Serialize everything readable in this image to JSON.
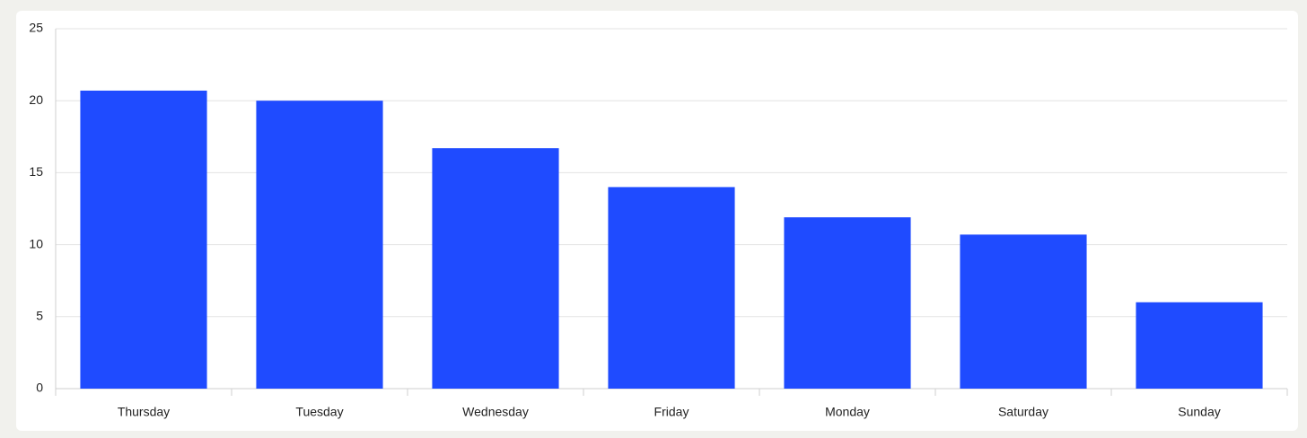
{
  "chart_data": {
    "type": "bar",
    "categories": [
      "Thursday",
      "Tuesday",
      "Wednesday",
      "Friday",
      "Monday",
      "Saturday",
      "Sunday"
    ],
    "values": [
      20.7,
      20,
      16.7,
      14,
      11.9,
      10.7,
      6
    ],
    "color": "#1f4bff",
    "ylim": [
      0,
      25
    ],
    "yticks": [
      0,
      5,
      10,
      15,
      20,
      25
    ],
    "grid": true
  }
}
